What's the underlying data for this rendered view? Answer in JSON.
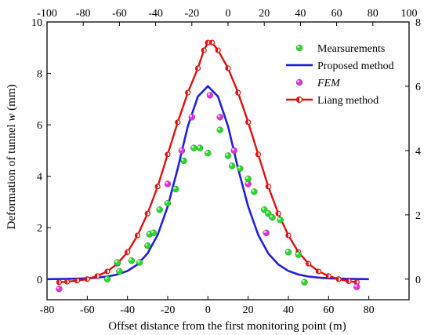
{
  "chart_data": {
    "type": "line",
    "title": "",
    "xlabel": "Offset distance from the first monitoring point (m)",
    "ylabel_prefix": "Deformation of tunnel ",
    "ylabel_var": "w",
    "ylabel_suffix": " (mm)",
    "xlim": [
      -80,
      100
    ],
    "ylim": [
      -0.8,
      10
    ],
    "x_ticks": [
      -80,
      -60,
      -40,
      -20,
      0,
      20,
      40,
      60,
      80
    ],
    "y_ticks": [
      0,
      2,
      4,
      6,
      8,
      10
    ],
    "x2_ticks": [
      -100,
      -80,
      -60,
      -40,
      -20,
      0,
      20,
      40,
      60,
      80,
      100
    ],
    "x2lim": [
      -100,
      100
    ],
    "y2_ticks": [
      0,
      2,
      4,
      6,
      8
    ],
    "y2lim": [
      -0.64,
      8
    ],
    "grid": false,
    "legend_position": "top-right",
    "series": [
      {
        "name": "Mearsurements",
        "kind": "scatter",
        "color": "#22dd22",
        "points": [
          [
            -50,
            0.0
          ],
          [
            -45,
            0.65
          ],
          [
            -44,
            0.3
          ],
          [
            -38,
            0.72
          ],
          [
            -34,
            0.65
          ],
          [
            -30,
            1.3
          ],
          [
            -29,
            1.75
          ],
          [
            -27,
            1.8
          ],
          [
            -24,
            2.7
          ],
          [
            -20,
            2.95
          ],
          [
            -16,
            3.5
          ],
          [
            -12,
            4.6
          ],
          [
            -7,
            5.1
          ],
          [
            -4,
            5.1
          ],
          [
            0,
            4.9
          ],
          [
            6,
            5.8
          ],
          [
            10,
            4.8
          ],
          [
            12,
            4.4
          ],
          [
            16,
            4.3
          ],
          [
            20,
            3.9
          ],
          [
            23,
            3.4
          ],
          [
            28,
            2.7
          ],
          [
            30,
            2.55
          ],
          [
            32,
            2.4
          ],
          [
            36,
            2.3
          ],
          [
            40,
            1.05
          ],
          [
            45,
            0.95
          ],
          [
            48,
            -0.12
          ]
        ]
      },
      {
        "name": "Proposed method",
        "kind": "line",
        "color": "#1f1fe0",
        "points": [
          [
            -80,
            0.0
          ],
          [
            -70,
            0.01
          ],
          [
            -60,
            0.03
          ],
          [
            -55,
            0.06
          ],
          [
            -50,
            0.1
          ],
          [
            -45,
            0.18
          ],
          [
            -40,
            0.32
          ],
          [
            -35,
            0.57
          ],
          [
            -30,
            1.0
          ],
          [
            -25,
            1.72
          ],
          [
            -20,
            2.82
          ],
          [
            -15,
            4.3
          ],
          [
            -10,
            5.95
          ],
          [
            -5,
            7.1
          ],
          [
            0,
            7.5
          ],
          [
            5,
            7.1
          ],
          [
            10,
            5.95
          ],
          [
            15,
            4.3
          ],
          [
            20,
            2.82
          ],
          [
            25,
            1.72
          ],
          [
            30,
            1.0
          ],
          [
            35,
            0.57
          ],
          [
            40,
            0.32
          ],
          [
            45,
            0.18
          ],
          [
            50,
            0.1
          ],
          [
            55,
            0.06
          ],
          [
            60,
            0.03
          ],
          [
            70,
            0.01
          ],
          [
            80,
            0.0
          ]
        ]
      },
      {
        "name": "FEM",
        "kind": "scatter",
        "color": "#e030e0",
        "points": [
          [
            -74,
            -0.38
          ],
          [
            -45,
            0.62
          ],
          [
            -29,
            1.75
          ],
          [
            -20,
            3.7
          ],
          [
            -13,
            5.0
          ],
          [
            -8,
            6.3
          ],
          [
            1,
            7.15
          ],
          [
            6,
            6.3
          ],
          [
            13,
            5.0
          ],
          [
            20,
            3.7
          ],
          [
            29,
            1.8
          ],
          [
            74,
            -0.3
          ]
        ]
      },
      {
        "name": "Liang method",
        "kind": "line-marker",
        "color": "#e01010",
        "points": [
          [
            -74,
            -0.12
          ],
          [
            -70,
            -0.1
          ],
          [
            -65,
            -0.06
          ],
          [
            -60,
            0.0
          ],
          [
            -55,
            0.12
          ],
          [
            -50,
            0.3
          ],
          [
            -45,
            0.6
          ],
          [
            -40,
            1.05
          ],
          [
            -35,
            1.7
          ],
          [
            -30,
            2.55
          ],
          [
            -25,
            3.6
          ],
          [
            -20,
            4.85
          ],
          [
            -15,
            6.1
          ],
          [
            -10,
            7.25
          ],
          [
            -5,
            8.2
          ],
          [
            -2,
            8.9
          ],
          [
            0,
            9.2
          ],
          [
            2,
            9.2
          ],
          [
            5,
            8.9
          ],
          [
            10,
            8.2
          ],
          [
            15,
            7.25
          ],
          [
            20,
            6.1
          ],
          [
            25,
            4.85
          ],
          [
            30,
            3.6
          ],
          [
            35,
            2.55
          ],
          [
            40,
            1.7
          ],
          [
            45,
            1.05
          ],
          [
            50,
            0.6
          ],
          [
            55,
            0.3
          ],
          [
            60,
            0.12
          ],
          [
            65,
            0.0
          ],
          [
            70,
            -0.08
          ],
          [
            74,
            -0.12
          ]
        ]
      }
    ]
  }
}
